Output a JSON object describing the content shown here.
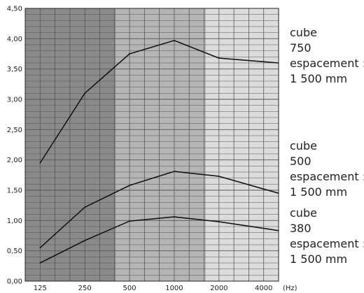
{
  "chart_data": {
    "type": "line",
    "categories": [
      "125",
      "250",
      "500",
      "1000",
      "2000",
      "4000"
    ],
    "x_unit": "(Hz)",
    "title": "",
    "xlabel": "",
    "ylabel": "",
    "ylim": [
      0,
      4.5
    ],
    "y_ticks": [
      "0,00",
      "0,50",
      "1,00",
      "1,50",
      "2,00",
      "2,50",
      "3,00",
      "3,50",
      "4,00",
      "4,50"
    ],
    "grid": true,
    "series": [
      {
        "values": [
          1.95,
          3.1,
          3.75,
          3.97,
          3.68,
          3.62
        ]
      },
      {
        "values": [
          0.55,
          1.22,
          1.58,
          1.81,
          1.73,
          1.52
        ]
      },
      {
        "values": [
          0.3,
          0.67,
          0.99,
          1.06,
          0.98,
          0.87
        ]
      }
    ]
  },
  "legend": [
    {
      "line1": "cube",
      "line2": "750",
      "line3": "espacement :",
      "line4": "1 500 mm"
    },
    {
      "line1": "cube",
      "line2": "500",
      "line3": "espacement :",
      "line4": "1 500 mm"
    },
    {
      "line1": "cube",
      "line2": "380",
      "line3": "espacement :",
      "line4": "1 500 mm"
    }
  ]
}
